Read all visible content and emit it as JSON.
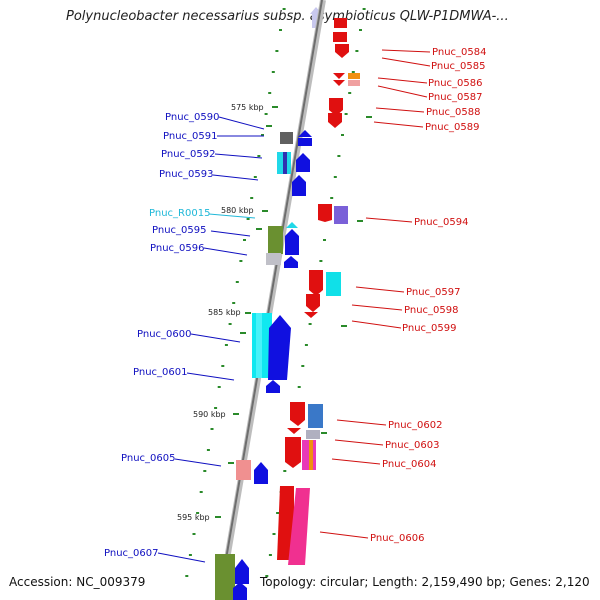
{
  "title": "Polynucleobacter necessarius subsp. asymbioticus QLW-P1DMWA-...",
  "footer": {
    "accession": "Accession: NC_009379",
    "summary": "Topology: circular; Length: 2,159,490 bp; Genes: 2,120"
  },
  "colors": {
    "backbone": "#8a8a8a",
    "tick": "#2a8a2a",
    "left_label": "#1010c0",
    "right_label": "#d01010",
    "rna_label": "#20b8d8"
  },
  "scale_labels": [
    "575 kbp",
    "580 kbp",
    "585 kbp",
    "590 kbp",
    "595 kbp"
  ],
  "genes_left": [
    {
      "label": "Pnuc_0590"
    },
    {
      "label": "Pnuc_0591"
    },
    {
      "label": "Pnuc_0592"
    },
    {
      "label": "Pnuc_0593"
    },
    {
      "label": "Pnuc_R0015"
    },
    {
      "label": "Pnuc_0595"
    },
    {
      "label": "Pnuc_0596"
    },
    {
      "label": "Pnuc_0600"
    },
    {
      "label": "Pnuc_0601"
    },
    {
      "label": "Pnuc_0605"
    },
    {
      "label": "Pnuc_0607"
    }
  ],
  "genes_right": [
    {
      "label": "Pnuc_0584"
    },
    {
      "label": "Pnuc_0585"
    },
    {
      "label": "Pnuc_0586"
    },
    {
      "label": "Pnuc_0587"
    },
    {
      "label": "Pnuc_0588"
    },
    {
      "label": "Pnuc_0589"
    },
    {
      "label": "Pnuc_0594"
    },
    {
      "label": "Pnuc_0597"
    },
    {
      "label": "Pnuc_0598"
    },
    {
      "label": "Pnuc_0599"
    },
    {
      "label": "Pnuc_0602"
    },
    {
      "label": "Pnuc_0603"
    },
    {
      "label": "Pnuc_0604"
    },
    {
      "label": "Pnuc_0606"
    }
  ]
}
